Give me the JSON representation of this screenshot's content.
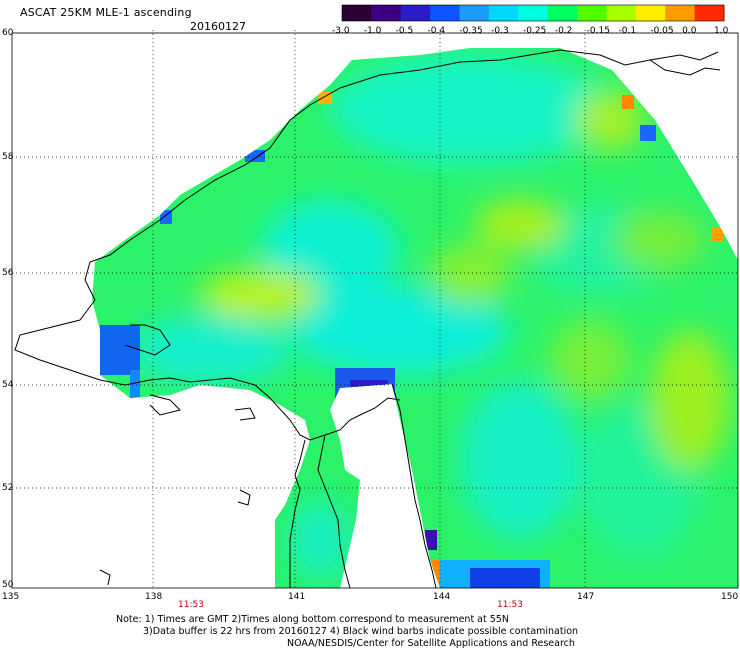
{
  "title": "ASCAT 25KM MLE-1 ascending",
  "date": "20160127",
  "colorbar": {
    "labels": [
      "-3.0",
      "-1.0",
      "-0.5",
      "-0.4",
      "-0.35",
      "-0.3",
      "-0.25",
      "-0.2",
      "-0.15",
      "-0.1",
      "-0.05",
      "0.0",
      "1.0"
    ],
    "colors": [
      "#2b0033",
      "#3c0080",
      "#2a1cc8",
      "#0a55ff",
      "#1a9cff",
      "#00d8ff",
      "#00ffe0",
      "#00ff60",
      "#50ff00",
      "#a8ff00",
      "#ffee00",
      "#ff9a00",
      "#ff2a00"
    ]
  },
  "axes": {
    "lat_labels": [
      "60",
      "58",
      "56",
      "54",
      "52",
      "50"
    ],
    "lon_labels": [
      "135",
      "138",
      "141",
      "144",
      "147",
      "150"
    ],
    "time_labels": [
      "11:53",
      "11:53"
    ]
  },
  "notes": {
    "line1": "Note: 1) Times are GMT 2)Times along bottom correspond to measurement at 55N",
    "line2": "3)Data buffer is 22 hrs from 20160127 4) Black wind barbs indicate possible contamination",
    "line3": "NOAA/NESDIS/Center for Satellite Applications and Research"
  }
}
